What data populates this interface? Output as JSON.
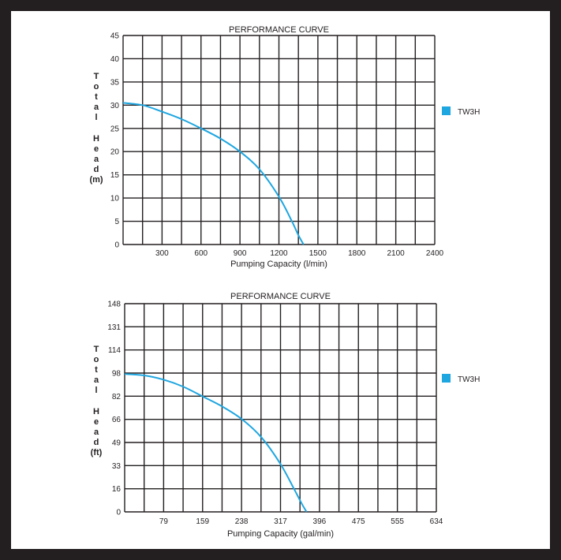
{
  "colors": {
    "background": "#231f20",
    "panel": "#ffffff",
    "grid": "#231f20",
    "curve": "#1ea6e0",
    "legend": "#1ea6e0"
  },
  "chart_data": [
    {
      "type": "line",
      "title": "PERFORMANCE CURVE",
      "xlabel": "Pumping Capacity (l/min)",
      "ylabel_word1": "Total",
      "ylabel_word2": "Head",
      "ylabel_unit": "(m)",
      "xlim": [
        0,
        2400
      ],
      "ylim": [
        0,
        45
      ],
      "x_ticks": [
        "300",
        "600",
        "900",
        "1200",
        "1500",
        "1800",
        "2100",
        "2400"
      ],
      "y_ticks": [
        "0",
        "5",
        "10",
        "15",
        "20",
        "25",
        "30",
        "35",
        "40",
        "45"
      ],
      "grid": true,
      "legend_position": "right",
      "series": [
        {
          "name": "TW3H",
          "x": [
            0,
            150,
            300,
            450,
            600,
            750,
            900,
            1050,
            1200,
            1300,
            1350,
            1390
          ],
          "y": [
            30.5,
            30,
            28.6,
            27,
            25,
            22.8,
            20,
            16.2,
            10.3,
            5,
            2,
            0
          ]
        }
      ]
    },
    {
      "type": "line",
      "title": "PERFORMANCE CURVE",
      "xlabel": "Pumping Capacity (gal/min)",
      "ylabel_word1": "Total",
      "ylabel_word2": "Head",
      "ylabel_unit": "(ft)",
      "xlim": [
        0,
        634
      ],
      "ylim": [
        0,
        148
      ],
      "x_ticks": [
        "79",
        "159",
        "238",
        "317",
        "396",
        "475",
        "555",
        "634"
      ],
      "y_ticks": [
        "0",
        "16",
        "33",
        "49",
        "66",
        "82",
        "98",
        "114",
        "131",
        "148"
      ],
      "grid": true,
      "legend_position": "right",
      "series": [
        {
          "name": "TW3H",
          "x": [
            0,
            40,
            79,
            119,
            159,
            198,
            238,
            278,
            317,
            345,
            360,
            370
          ],
          "y": [
            98,
            97,
            94,
            89,
            82,
            75,
            66,
            53,
            34,
            16,
            6,
            0
          ]
        }
      ]
    }
  ]
}
